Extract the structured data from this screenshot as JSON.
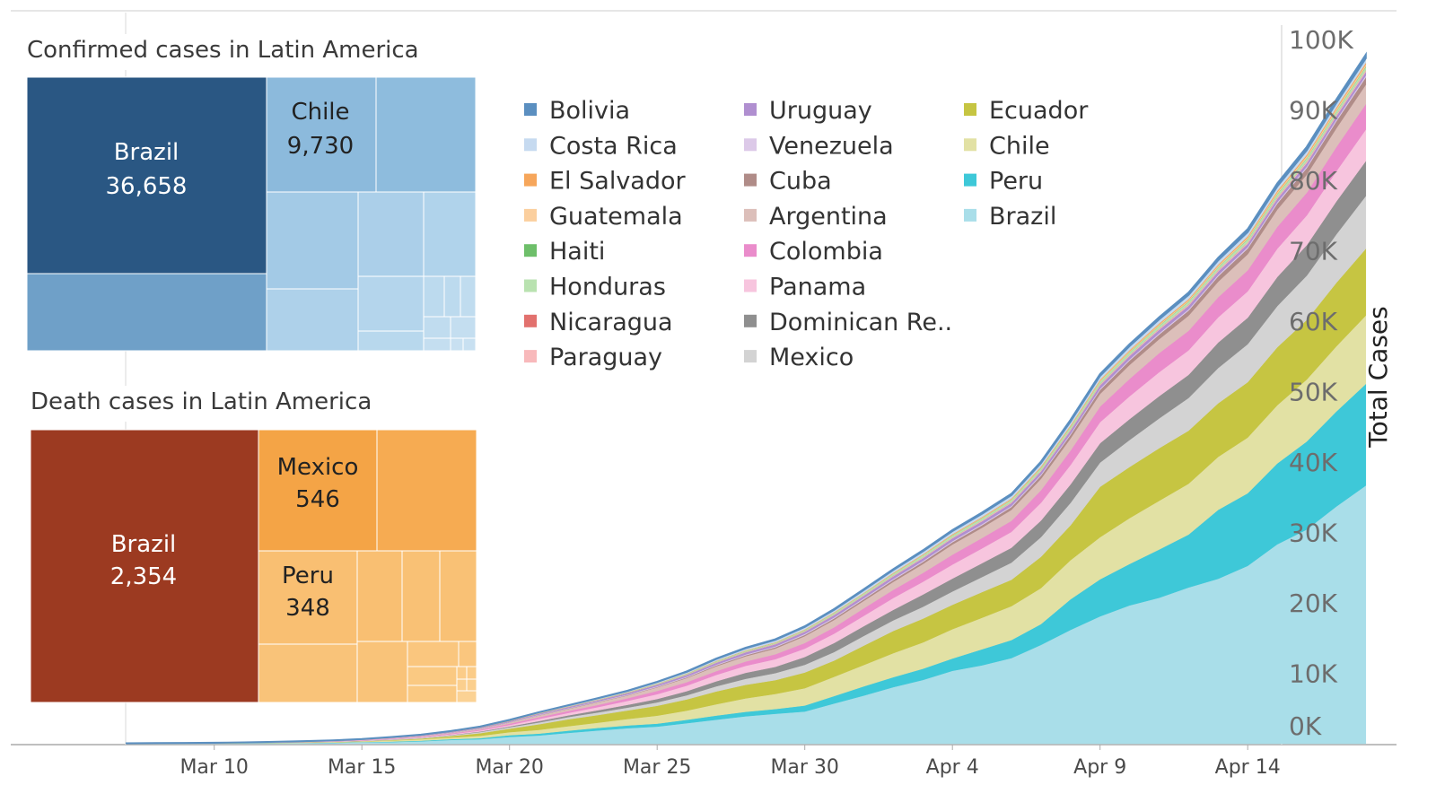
{
  "chart_data": [
    {
      "type": "area",
      "stacked": true,
      "ylabel": "Total Cases",
      "ylim": [
        0,
        100000
      ],
      "y_ticks": [
        "0K",
        "10K",
        "20K",
        "30K",
        "40K",
        "50K",
        "60K",
        "70K",
        "80K",
        "90K",
        "100K"
      ],
      "x_tick_labels": [
        "Mar 10",
        "Mar 15",
        "Mar 20",
        "Mar 25",
        "Mar 30",
        "Apr 4",
        "Apr 9",
        "Apr 14"
      ],
      "y_axis_position": "right",
      "grid": false,
      "legend_columns": [
        [
          "Bolivia",
          "Costa Rica",
          "El Salvador",
          "Guatemala",
          "Haiti",
          "Honduras",
          "Nicaragua",
          "Paraguay"
        ],
        [
          "Uruguay",
          "Venezuela",
          "Cuba",
          "Argentina",
          "Colombia",
          "Panama",
          "Dominican Re..",
          "Mexico"
        ],
        [
          "Ecuador",
          "Chile",
          "Peru",
          "Brazil"
        ]
      ],
      "colors": {
        "Bolivia": "#5b8fc0",
        "Costa Rica": "#c6daf0",
        "El Salvador": "#f6a65b",
        "Guatemala": "#fbcf9e",
        "Haiti": "#6ebf6a",
        "Honduras": "#b9e2b0",
        "Nicaragua": "#e2716e",
        "Paraguay": "#f8b9bb",
        "Uruguay": "#b08fd0",
        "Venezuela": "#dcc9e8",
        "Cuba": "#b08c88",
        "Argentina": "#dcbfba",
        "Colombia": "#ea8ccb",
        "Panama": "#f7c5de",
        "Dominican Re..": "#8f8f8f",
        "Mexico": "#d3d3d3",
        "Ecuador": "#c6c542",
        "Chile": "#e2e1a4",
        "Peru": "#3ec8d8",
        "Brazil": "#a9dee9"
      },
      "x": [
        "Mar 7",
        "Mar 8",
        "Mar 9",
        "Mar 10",
        "Mar 11",
        "Mar 12",
        "Mar 13",
        "Mar 14",
        "Mar 15",
        "Mar 16",
        "Mar 17",
        "Mar 18",
        "Mar 19",
        "Mar 20",
        "Mar 21",
        "Mar 22",
        "Mar 23",
        "Mar 24",
        "Mar 25",
        "Mar 26",
        "Mar 27",
        "Mar 28",
        "Mar 29",
        "Mar 30",
        "Mar 31",
        "Apr 1",
        "Apr 2",
        "Apr 3",
        "Apr 4",
        "Apr 5",
        "Apr 6",
        "Apr 7",
        "Apr 8",
        "Apr 9",
        "Apr 10",
        "Apr 11",
        "Apr 12",
        "Apr 13",
        "Apr 14",
        "Apr 15",
        "Apr 16",
        "Apr 17",
        "Apr 18"
      ],
      "series": [
        {
          "name": "Brazil",
          "values": [
            19,
            25,
            30,
            34,
            52,
            77,
            98,
            121,
            200,
            234,
            346,
            529,
            640,
            970,
            1178,
            1546,
            1891,
            2201,
            2433,
            2915,
            3417,
            3904,
            4256,
            4579,
            5717,
            6836,
            8044,
            9056,
            10360,
            11130,
            12161,
            14034,
            16170,
            18092,
            19638,
            20727,
            22192,
            23430,
            25262,
            28320,
            30425,
            33682,
            36658
          ]
        },
        {
          "name": "Peru",
          "values": [
            6,
            7,
            9,
            11,
            13,
            17,
            22,
            38,
            43,
            71,
            86,
            117,
            145,
            234,
            263,
            318,
            363,
            395,
            416,
            480,
            580,
            635,
            671,
            852,
            1065,
            1323,
            1414,
            1595,
            1746,
            2281,
            2561,
            2954,
            4342,
            5256,
            5897,
            6848,
            7519,
            9784,
            10303,
            11475,
            12491,
            13489,
            14420
          ]
        },
        {
          "name": "Chile",
          "values": [
            7,
            10,
            13,
            17,
            23,
            33,
            43,
            61,
            75,
            155,
            201,
            238,
            342,
            434,
            537,
            632,
            746,
            922,
            1142,
            1306,
            1610,
            1909,
            2139,
            2449,
            2738,
            3031,
            3404,
            3737,
            4161,
            4471,
            4815,
            5116,
            5546,
            5972,
            6501,
            6927,
            7213,
            7525,
            7917,
            8273,
            8807,
            9252,
            9730
          ]
        },
        {
          "name": "Ecuador",
          "values": [
            14,
            15,
            15,
            17,
            17,
            17,
            23,
            28,
            37,
            58,
            111,
            199,
            367,
            506,
            789,
            981,
            1082,
            1211,
            1403,
            1595,
            1823,
            1924,
            1962,
            2240,
            2302,
            2748,
            3163,
            3368,
            3465,
            3646,
            3747,
            4450,
            4965,
            7161,
            7257,
            7466,
            7529,
            7603,
            7858,
            8225,
            8450,
            9022,
            9468
          ]
        },
        {
          "name": "Mexico",
          "values": [
            7,
            7,
            7,
            7,
            8,
            12,
            26,
            41,
            53,
            82,
            93,
            118,
            164,
            203,
            251,
            316,
            367,
            405,
            475,
            585,
            717,
            848,
            993,
            1094,
            1215,
            1378,
            1510,
            1688,
            1890,
            2143,
            2439,
            2785,
            3181,
            3441,
            3844,
            4219,
            4661,
            5014,
            5399,
            5847,
            6297,
            6875,
            7497
          ]
        },
        {
          "name": "Dominican Re..",
          "values": [
            5,
            5,
            5,
            5,
            5,
            5,
            11,
            11,
            11,
            21,
            21,
            34,
            72,
            112,
            202,
            245,
            312,
            392,
            488,
            581,
            719,
            859,
            901,
            1109,
            1284,
            1380,
            1488,
            1745,
            1828,
            1956,
            2111,
            2349,
            2620,
            2759,
            2967,
            3167,
            3286,
            3614,
            3755,
            4126,
            4335,
            4680,
            4964
          ]
        },
        {
          "name": "Panama",
          "values": [
            1,
            1,
            1,
            1,
            14,
            27,
            36,
            43,
            55,
            69,
            86,
            109,
            137,
            200,
            313,
            345,
            443,
            558,
            674,
            786,
            901,
            989,
            1075,
            1181,
            1317,
            1475,
            1673,
            1801,
            1988,
            2100,
            2249,
            2528,
            2752,
            2974,
            3234,
            3400,
            3472,
            3574,
            3751,
            4016,
            4210,
            4273,
            4467
          ]
        },
        {
          "name": "Colombia",
          "values": [
            1,
            1,
            1,
            3,
            9,
            13,
            16,
            24,
            45,
            57,
            75,
            102,
            128,
            196,
            231,
            277,
            306,
            378,
            470,
            491,
            539,
            608,
            702,
            798,
            906,
            1065,
            1161,
            1267,
            1406,
            1485,
            1579,
            1780,
            2054,
            2223,
            2473,
            2709,
            2776,
            2852,
            2979,
            3105,
            3233,
            3439,
            3621
          ]
        },
        {
          "name": "Argentina",
          "values": [
            8,
            12,
            17,
            19,
            19,
            31,
            34,
            45,
            56,
            65,
            79,
            97,
            128,
            158,
            266,
            301,
            387,
            387,
            502,
            589,
            690,
            745,
            820,
            966,
            1054,
            1054,
            1133,
            1265,
            1451,
            1451,
            1554,
            1628,
            1715,
            1795,
            1975,
            1975,
            2142,
            2208,
            2277,
            2443,
            2571,
            2669,
            2758
          ]
        },
        {
          "name": "Cuba",
          "values": [
            0,
            0,
            0,
            0,
            3,
            4,
            4,
            4,
            4,
            5,
            7,
            11,
            16,
            21,
            35,
            40,
            48,
            57,
            67,
            80,
            119,
            139,
            170,
            186,
            212,
            233,
            269,
            288,
            320,
            350,
            396,
            457,
            515,
            564,
            620,
            669,
            726,
            766,
            814,
            862,
            923,
            986,
            1035
          ]
        },
        {
          "name": "Venezuela",
          "values": [
            0,
            0,
            0,
            0,
            0,
            0,
            2,
            10,
            17,
            33,
            36,
            36,
            42,
            42,
            70,
            70,
            77,
            84,
            91,
            107,
            107,
            119,
            119,
            135,
            135,
            143,
            146,
            153,
            155,
            159,
            165,
            166,
            167,
            171,
            171,
            175,
            181,
            189,
            193,
            197,
            204,
            227,
            256
          ]
        },
        {
          "name": "Uruguay",
          "values": [
            0,
            0,
            0,
            0,
            0,
            0,
            4,
            6,
            8,
            29,
            50,
            79,
            94,
            110,
            135,
            158,
            162,
            189,
            217,
            238,
            274,
            304,
            309,
            310,
            338,
            350,
            369,
            386,
            400,
            406,
            415,
            424,
            456,
            473,
            480,
            494,
            501,
            502,
            483,
            492,
            502,
            508,
            517
          ]
        },
        {
          "name": "Paraguay",
          "values": [
            1,
            1,
            5,
            5,
            5,
            5,
            6,
            6,
            6,
            8,
            11,
            11,
            13,
            18,
            22,
            22,
            27,
            37,
            41,
            52,
            56,
            59,
            64,
            65,
            69,
            77,
            92,
            96,
            104,
            113,
            115,
            119,
            124,
            129,
            133,
            147,
            159,
            161,
            174,
            174,
            202,
            206,
            208
          ]
        },
        {
          "name": "Nicaragua",
          "values": [
            0,
            0,
            0,
            0,
            0,
            0,
            0,
            0,
            0,
            0,
            0,
            0,
            1,
            1,
            2,
            2,
            2,
            2,
            2,
            2,
            4,
            4,
            5,
            5,
            5,
            5,
            5,
            5,
            6,
            6,
            6,
            6,
            6,
            8,
            9,
            9,
            9,
            9,
            9,
            9,
            10,
            10,
            10
          ]
        },
        {
          "name": "Honduras",
          "values": [
            0,
            0,
            0,
            0,
            2,
            2,
            3,
            6,
            8,
            9,
            12,
            24,
            26,
            30,
            36,
            36,
            52,
            68,
            95,
            110,
            139,
            141,
            141,
            172,
            219,
            222,
            268,
            298,
            298,
            305,
            312,
            343,
            382,
            392,
            397,
            407,
            419,
            426,
            442,
            457,
            472,
            477,
            494
          ]
        },
        {
          "name": "Haiti",
          "values": [
            0,
            0,
            0,
            0,
            0,
            0,
            0,
            0,
            0,
            0,
            0,
            0,
            2,
            2,
            2,
            2,
            7,
            8,
            8,
            8,
            8,
            15,
            15,
            15,
            16,
            16,
            18,
            21,
            24,
            24,
            25,
            30,
            31,
            33,
            33,
            40,
            41,
            43,
            47,
            57,
            58,
            58,
            58
          ]
        },
        {
          "name": "Guatemala",
          "values": [
            0,
            0,
            0,
            0,
            0,
            0,
            1,
            1,
            2,
            6,
            6,
            9,
            12,
            17,
            19,
            20,
            21,
            24,
            25,
            28,
            32,
            34,
            36,
            38,
            39,
            47,
            50,
            61,
            61,
            70,
            77,
            87,
            95,
            126,
            137,
            156,
            167,
            180,
            196,
            214,
            235,
            257,
            289
          ]
        },
        {
          "name": "El Salvador",
          "values": [
            0,
            0,
            0,
            0,
            0,
            0,
            0,
            0,
            0,
            0,
            0,
            1,
            1,
            1,
            3,
            5,
            5,
            13,
            13,
            24,
            30,
            32,
            41,
            46,
            56,
            62,
            69,
            78,
            93,
            93,
            103,
            118,
            118,
            125,
            137,
            149,
            159,
            164,
            190,
            201,
            218,
            225,
            237
          ]
        },
        {
          "name": "Costa Rica",
          "values": [
            1,
            5,
            9,
            13,
            22,
            23,
            26,
            27,
            35,
            41,
            50,
            69,
            87,
            113,
            117,
            134,
            158,
            177,
            201,
            231,
            263,
            295,
            314,
            330,
            347,
            375,
            396,
            416,
            435,
            454,
            467,
            483,
            502,
            539,
            558,
            577,
            595,
            612,
            618,
            626,
            642,
            649,
            655
          ]
        },
        {
          "name": "Bolivia",
          "values": [
            0,
            0,
            0,
            2,
            2,
            3,
            10,
            10,
            10,
            11,
            12,
            12,
            15,
            19,
            19,
            24,
            27,
            29,
            39,
            61,
            74,
            81,
            97,
            107,
            115,
            123,
            132,
            139,
            157,
            183,
            194,
            210,
            264,
            268,
            275,
            300,
            330,
            354,
            397,
            441,
            465,
            493,
            520
          ]
        }
      ]
    },
    {
      "type": "treemap",
      "title": "Confirmed cases in Latin America",
      "items": [
        {
          "label": "Brazil",
          "value": 36658,
          "value_text": "36,658",
          "color": "#2a5783"
        },
        {
          "label": "Chile",
          "value": 9730,
          "value_text": "9,730",
          "color": "#8cbadc"
        }
      ]
    },
    {
      "type": "treemap",
      "title": "Death cases in Latin America",
      "items": [
        {
          "label": "Brazil",
          "value": 2354,
          "value_text": "2,354",
          "color": "#9c3a21"
        },
        {
          "label": "Mexico",
          "value": 546,
          "value_text": "546",
          "color": "#f4a446"
        },
        {
          "label": "Peru",
          "value": 348,
          "value_text": "348",
          "color": "#f9bf72"
        }
      ]
    }
  ]
}
